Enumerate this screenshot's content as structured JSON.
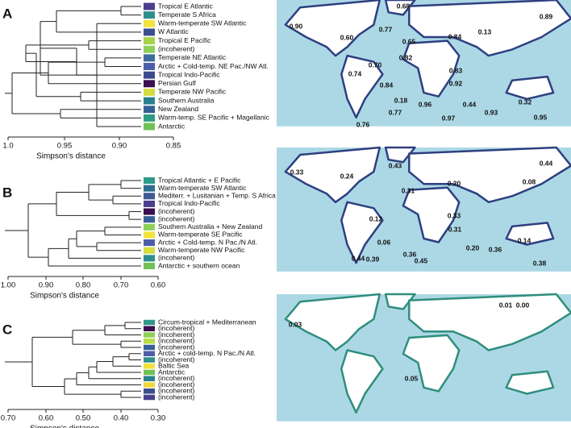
{
  "panels": [
    {
      "label": "A",
      "axis_title": "Simpson's distance",
      "ticks": [
        "1.0",
        "0.95",
        "0.90",
        "0.85"
      ],
      "leaves": [
        {
          "name": "Tropical E Atlantic",
          "color": "#4a3f8c"
        },
        {
          "name": "Temperate S Africa",
          "color": "#2e8e8c"
        },
        {
          "name": "Warm-temperate SW Atlantic",
          "color": "#f2e23c"
        },
        {
          "name": "W Atlantic",
          "color": "#3b4f8f"
        },
        {
          "name": "Tropical E Pacific",
          "color": "#a7d24a"
        },
        {
          "name": "(incoherent)",
          "color": "#8fcf5a",
          "label_color": "#999999"
        },
        {
          "name": "Temperate NE Atlantic",
          "color": "#3f6c9c"
        },
        {
          "name": "Arctic + Cold-temp. NE Pac./NW Atl.",
          "color": "#4c5ea8"
        },
        {
          "name": "Tropical Indo-Pacific",
          "color": "#3e4a8e"
        },
        {
          "name": "Persian Gulf",
          "color": "#3b0f50"
        },
        {
          "name": "Temperate NW Pacific",
          "color": "#d3dc42"
        },
        {
          "name": "Southern Australia",
          "color": "#2a7f8e"
        },
        {
          "name": "New Zealand",
          "color": "#355f93"
        },
        {
          "name": "Warm-temp. SE Pacific + Magellanic",
          "color": "#2f9b84"
        },
        {
          "name": "Antarctic",
          "color": "#72c155"
        }
      ],
      "map_labels": [
        "0.68",
        "0.90",
        "0.60",
        "0.77",
        "0.65",
        "0.84",
        "0.13",
        "0.89",
        "0.82",
        "0.70",
        "0.74",
        "0.83",
        "0.92",
        "0.84",
        "0.18",
        "0.96",
        "0.44",
        "0.93",
        "0.32",
        "0.77",
        "0.97",
        "0.95",
        "0.76"
      ]
    },
    {
      "label": "B",
      "axis_title": "Simpson's distance",
      "ticks": [
        "1.00",
        "0.90",
        "0.80",
        "0.70",
        "0.60"
      ],
      "leaves": [
        {
          "name": "Tropical Atlantic + E Pacific",
          "color": "#2e9a8a"
        },
        {
          "name": "Warm-temperate SW Atlantic",
          "color": "#2f6e90"
        },
        {
          "name": "Mediterr. + Lusitanian + Temp. S Africa",
          "color": "#3f5a95"
        },
        {
          "name": "Tropical Indo-Pacific",
          "color": "#4a3f8c"
        },
        {
          "name": "(incoherent)",
          "color": "#3b0f50",
          "label_color": "#999999"
        },
        {
          "name": "(incoherent)",
          "color": "#3a5f98",
          "label_color": "#999999"
        },
        {
          "name": "Southern Australia + New Zealand",
          "color": "#8fcf5a"
        },
        {
          "name": "Warm-temperate SE Pacific",
          "color": "#f2e23c"
        },
        {
          "name": "Arctic + Cold-temp. N Pac./N Atl.",
          "color": "#4c5ea8"
        },
        {
          "name": "Warm-temperate NW Pacific",
          "color": "#d8de3e"
        },
        {
          "name": "(incoherent)",
          "color": "#2f8e8c",
          "label_color": "#999999"
        },
        {
          "name": "Antarctic + southern ocean",
          "color": "#72c155"
        }
      ],
      "map_labels": [
        "0.33",
        "0.24",
        "0.43",
        "0.31",
        "0.20",
        "0.44",
        "0.08",
        "0.12",
        "0.33",
        "0.31",
        "0.06",
        "0.20",
        "0.36",
        "0.14",
        "0.36",
        "0.44",
        "0.39",
        "0.45",
        "0.38"
      ]
    },
    {
      "label": "C",
      "axis_title": "Simpson's distance",
      "ticks": [
        "0.70",
        "0.60",
        "0.50",
        "0.40",
        "0.30"
      ],
      "leaves": [
        {
          "name": "Circum-tropical + Mediterranean",
          "color": "#2e9a8a"
        },
        {
          "name": "(incoherent)",
          "color": "#3b0f50",
          "label_color": "#999999"
        },
        {
          "name": "(incoherent)",
          "color": "#8fcf5a",
          "label_color": "#999999"
        },
        {
          "name": "(incoherent)",
          "color": "#b7dc4a",
          "label_color": "#999999"
        },
        {
          "name": "(incoherent)",
          "color": "#3a5f98",
          "label_color": "#999999"
        },
        {
          "name": "Arctic + cold-temp. N Pac./N Atl.",
          "color": "#4c5ea8"
        },
        {
          "name": "(incoherent)",
          "color": "#2f8e8c",
          "label_color": "#999999"
        },
        {
          "name": "Baltic Sea",
          "color": "#f2e23c"
        },
        {
          "name": "Antarctic",
          "color": "#72c155"
        },
        {
          "name": "(incoherent)",
          "color": "#2a7f8e",
          "label_color": "#999999"
        },
        {
          "name": "(incoherent)",
          "color": "#f0d83a",
          "label_color": "#999999"
        },
        {
          "name": "(incoherent)",
          "color": "#3b4f8f",
          "label_color": "#999999"
        },
        {
          "name": "(incoherent)",
          "color": "#4a3f8c",
          "label_color": "#999999"
        }
      ],
      "map_labels": [
        "0.01",
        "0.00",
        "0.03",
        "0.05"
      ]
    }
  ]
}
